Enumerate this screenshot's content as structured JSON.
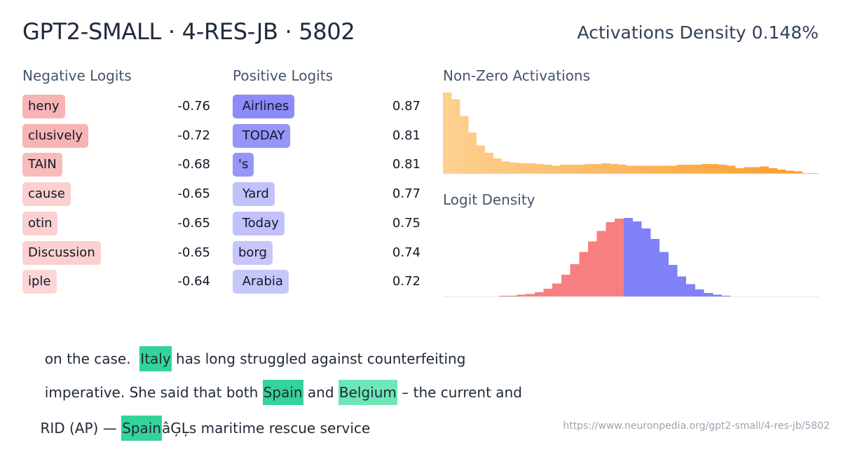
{
  "header": {
    "title": "GPT2-SMALL · 4-RES-JB · 5802",
    "density_label": "Activations Density 0.148%"
  },
  "negative_logits": {
    "heading": "Negative Logits",
    "items": [
      {
        "token": "heny",
        "value": "-0.76",
        "color": "#f8b4b4"
      },
      {
        "token": "clusively",
        "value": "-0.72",
        "color": "#f8b4b4"
      },
      {
        "token": "TAIN",
        "value": "-0.68",
        "color": "#f8bcbc"
      },
      {
        "token": "cause",
        "value": "-0.65",
        "color": "#fcd0d0"
      },
      {
        "token": "otin",
        "value": "-0.65",
        "color": "#fcd0d0"
      },
      {
        "token": "Discussion",
        "value": "-0.65",
        "color": "#fcd0d0"
      },
      {
        "token": "iple",
        "value": "-0.64",
        "color": "#fcd6d6"
      }
    ]
  },
  "positive_logits": {
    "heading": "Positive Logits",
    "items": [
      {
        "token": " Airlines",
        "value": "0.87",
        "color": "#8b8cf7"
      },
      {
        "token": " TODAY",
        "value": "0.81",
        "color": "#9596f8"
      },
      {
        "token": "'s",
        "value": "0.81",
        "color": "#9596f8"
      },
      {
        "token": " Yard",
        "value": "0.77",
        "color": "#c1c1fb"
      },
      {
        "token": " Today",
        "value": "0.75",
        "color": "#c1c1fb"
      },
      {
        "token": "borg",
        "value": "0.74",
        "color": "#c6c6fb"
      },
      {
        "token": " Arabia",
        "value": "0.72",
        "color": "#c6c6fb"
      }
    ]
  },
  "nonzero_activations": {
    "heading": "Non-Zero Activations",
    "colors": [
      "#fdd08f",
      "#fb9c2a"
    ]
  },
  "logit_density": {
    "heading": "Logit Density",
    "negative_color": "#f87f7f",
    "positive_color": "#8181f8"
  },
  "chart_data": [
    {
      "type": "bar",
      "title": "Non-Zero Activations",
      "values": [
        100,
        92,
        71,
        51,
        35,
        26,
        19,
        15,
        14,
        13,
        13,
        12,
        11,
        10,
        11,
        11,
        11,
        12,
        12,
        13,
        12,
        11,
        10,
        10,
        10,
        10,
        10,
        10,
        11,
        11,
        11,
        12,
        12,
        11,
        10,
        7,
        8,
        8,
        9,
        7,
        5,
        4,
        3,
        1,
        1
      ]
    },
    {
      "type": "bar",
      "title": "Logit Density",
      "negative_values": [
        1,
        1,
        2,
        3,
        5,
        9,
        15,
        25,
        37,
        51,
        63,
        75,
        85,
        89
      ],
      "positive_values": [
        90,
        86,
        78,
        66,
        51,
        36,
        23,
        14,
        8,
        4,
        2,
        1
      ]
    }
  ],
  "snippets": [
    {
      "before": " on the case.  ",
      "highlight": "Italy",
      "after": " has long struggled against counterfeiting"
    },
    {
      "before": " imperative. She said that both ",
      "highlight": "Spain",
      "middle": " and ",
      "highlight2": "Belgium",
      "after": " – the current and"
    },
    {
      "before": "RID (AP) — ",
      "highlight": "Spain",
      "after": "âĢĻs maritime rescue service"
    }
  ],
  "footer": {
    "url": "https://www.neuronpedia.org/gpt2-small/4-res-jb/5802"
  }
}
